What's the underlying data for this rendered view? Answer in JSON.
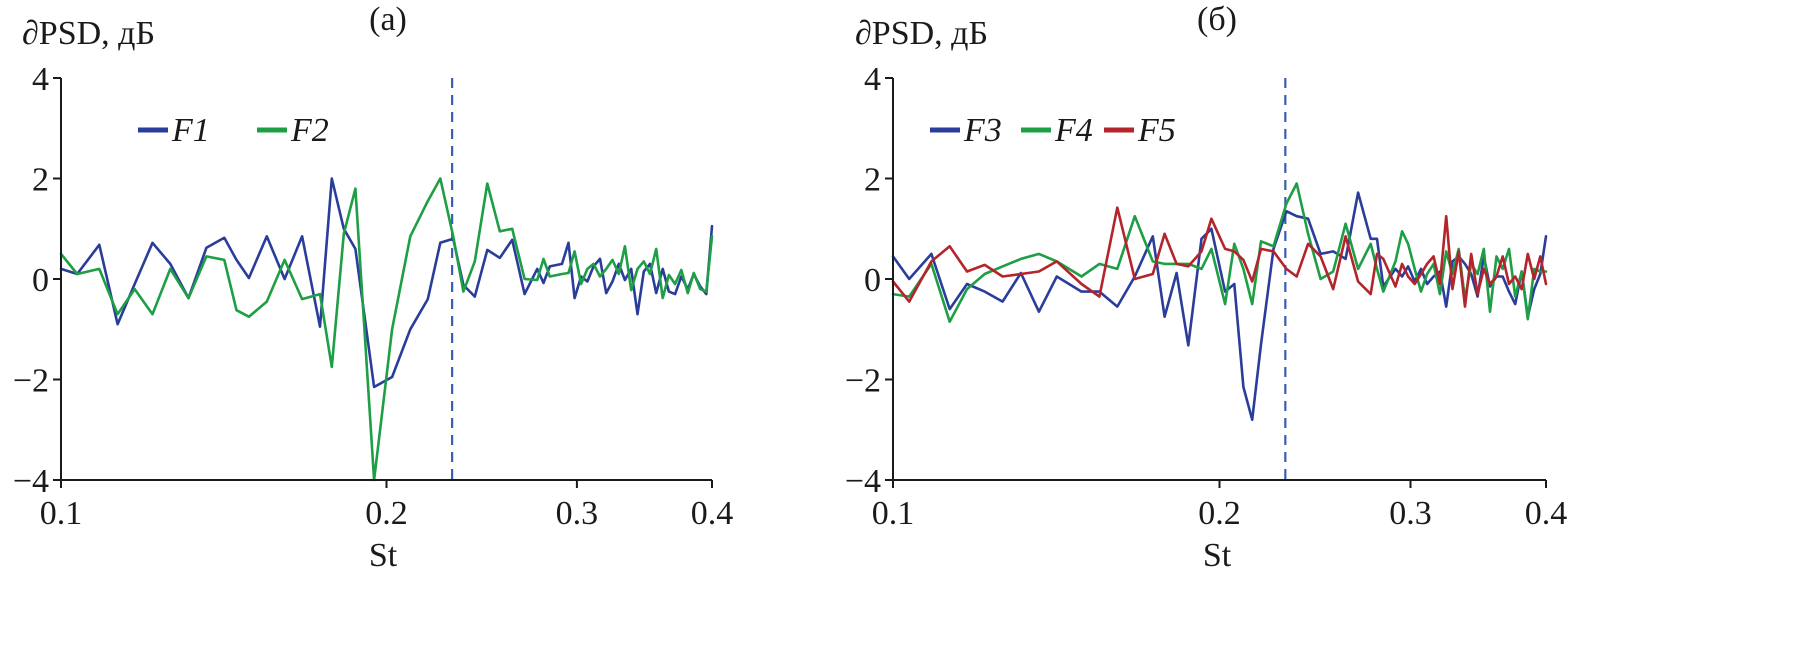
{
  "chart_data": [
    {
      "type": "line",
      "panel_label": "(a)",
      "ylabel": "∂PSD, дБ",
      "xlabel": "St",
      "x_scale": "log",
      "xlim": [
        0.1,
        0.4
      ],
      "ylim": [
        -4,
        4
      ],
      "x_ticks": [
        0.1,
        0.2,
        0.3,
        0.4
      ],
      "x_tick_labels": [
        "0.1",
        "0.2",
        "0.3",
        "0.4"
      ],
      "y_ticks": [
        -4,
        -2,
        0,
        2,
        4
      ],
      "y_tick_labels": [
        "−4",
        "−2",
        "0",
        "2",
        "4"
      ],
      "marker_x": 0.23,
      "legend_position": "top-left",
      "series": [
        {
          "name": "F1",
          "color": "#2a3d9a",
          "x": [
            0.1,
            0.1035,
            0.1085,
            0.1128,
            0.117,
            0.1215,
            0.1262,
            0.1312,
            0.1363,
            0.1416,
            0.1453,
            0.1492,
            0.155,
            0.161,
            0.1671,
            0.1736,
            0.178,
            0.1826,
            0.1872,
            0.1948,
            0.2024,
            0.2104,
            0.2184,
            0.2243,
            0.2305,
            0.2356,
            0.2414,
            0.2479,
            0.2546,
            0.2614,
            0.2684,
            0.2757,
            0.2794,
            0.2832,
            0.2906,
            0.2947,
            0.2985,
            0.3027,
            0.3068,
            0.3108,
            0.3151,
            0.3193,
            0.3236,
            0.328,
            0.3323,
            0.3368,
            0.3413,
            0.3459,
            0.3505,
            0.3552,
            0.3601,
            0.3649,
            0.3698,
            0.3747,
            0.3799,
            0.3848,
            0.3901,
            0.3952,
            0.4
          ],
          "values": [
            0.2,
            0.1,
            0.68,
            -0.9,
            -0.1,
            0.72,
            0.3,
            -0.38,
            0.62,
            0.82,
            0.38,
            0.02,
            0.85,
            0.0,
            0.85,
            -0.95,
            2.0,
            1.0,
            0.6,
            -2.15,
            -1.95,
            -1.0,
            -0.4,
            0.72,
            0.8,
            -0.12,
            -0.35,
            0.58,
            0.42,
            0.78,
            -0.3,
            0.2,
            -0.08,
            0.25,
            0.3,
            0.72,
            -0.38,
            0.05,
            -0.05,
            0.25,
            0.4,
            -0.28,
            -0.05,
            0.3,
            -0.02,
            0.2,
            -0.7,
            0.15,
            0.3,
            -0.28,
            0.2,
            -0.25,
            -0.3,
            0.05,
            -0.2,
            0.1,
            -0.15,
            -0.3,
            1.05
          ]
        },
        {
          "name": "F2",
          "color": "#1e9e45",
          "x": [
            0.1,
            0.1035,
            0.1085,
            0.1128,
            0.117,
            0.1215,
            0.1262,
            0.1312,
            0.1363,
            0.1416,
            0.1453,
            0.1492,
            0.155,
            0.161,
            0.1671,
            0.1736,
            0.178,
            0.1826,
            0.1872,
            0.1948,
            0.2024,
            0.2104,
            0.2184,
            0.2243,
            0.2305,
            0.2356,
            0.2414,
            0.2479,
            0.2546,
            0.2614,
            0.2684,
            0.2757,
            0.2794,
            0.2832,
            0.2906,
            0.2947,
            0.2985,
            0.3027,
            0.3068,
            0.3108,
            0.3151,
            0.3193,
            0.3236,
            0.328,
            0.3323,
            0.3368,
            0.3413,
            0.3459,
            0.3505,
            0.3552,
            0.3601,
            0.3649,
            0.3698,
            0.3747,
            0.3799,
            0.3848,
            0.3901,
            0.3952,
            0.4
          ],
          "values": [
            0.5,
            0.1,
            0.2,
            -0.7,
            -0.2,
            -0.7,
            0.2,
            -0.38,
            0.45,
            0.38,
            -0.62,
            -0.75,
            -0.45,
            0.38,
            -0.4,
            -0.3,
            -1.75,
            0.9,
            1.8,
            -4.0,
            -1.0,
            0.85,
            1.55,
            2.0,
            0.85,
            -0.25,
            0.35,
            1.9,
            0.95,
            1.0,
            0.0,
            -0.02,
            0.4,
            0.05,
            0.1,
            0.12,
            0.55,
            -0.1,
            0.2,
            0.3,
            0.05,
            0.2,
            0.38,
            0.1,
            0.65,
            -0.22,
            0.2,
            0.35,
            0.1,
            0.6,
            -0.38,
            0.08,
            -0.1,
            0.18,
            -0.28,
            0.12,
            -0.2,
            -0.25,
            0.85
          ]
        }
      ]
    },
    {
      "type": "line",
      "panel_label": "(б)",
      "ylabel": "∂PSD, дБ",
      "xlabel": "St",
      "x_scale": "log",
      "xlim": [
        0.1,
        0.4
      ],
      "ylim": [
        -4,
        4
      ],
      "x_ticks": [
        0.1,
        0.2,
        0.3,
        0.4
      ],
      "x_tick_labels": [
        "0.1",
        "0.2",
        "0.3",
        "0.4"
      ],
      "y_ticks": [
        -4,
        -2,
        0,
        2,
        4
      ],
      "y_tick_labels": [
        "−4",
        "−2",
        "0",
        "2",
        "4"
      ],
      "marker_x": 0.23,
      "legend_position": "top-left",
      "series": [
        {
          "name": "F3",
          "color": "#2a3d9a",
          "x": [
            0.1,
            0.1035,
            0.1085,
            0.1128,
            0.117,
            0.1215,
            0.1262,
            0.1312,
            0.1363,
            0.1416,
            0.1492,
            0.155,
            0.161,
            0.1671,
            0.1736,
            0.178,
            0.1826,
            0.1872,
            0.1925,
            0.1966,
            0.2024,
            0.2064,
            0.2104,
            0.2144,
            0.2184,
            0.2243,
            0.2305,
            0.2356,
            0.2414,
            0.2479,
            0.2546,
            0.2614,
            0.2684,
            0.2757,
            0.2794,
            0.2832,
            0.2906,
            0.2947,
            0.2985,
            0.3027,
            0.3068,
            0.3108,
            0.3151,
            0.3193,
            0.3236,
            0.328,
            0.3323,
            0.3368,
            0.3413,
            0.3459,
            0.3505,
            0.3552,
            0.3601,
            0.3649,
            0.3698,
            0.3747,
            0.3799,
            0.3848,
            0.3901,
            0.3952,
            0.4
          ],
          "values": [
            0.45,
            0.0,
            0.5,
            -0.6,
            -0.1,
            -0.25,
            -0.45,
            0.12,
            -0.65,
            0.05,
            -0.25,
            -0.25,
            -0.55,
            0.05,
            0.85,
            -0.75,
            0.12,
            -1.32,
            0.8,
            1.0,
            -0.25,
            -0.1,
            -2.15,
            -2.8,
            -1.3,
            0.6,
            1.35,
            1.25,
            1.2,
            0.5,
            0.55,
            0.4,
            1.72,
            0.8,
            0.8,
            -0.15,
            0.2,
            0.05,
            0.25,
            -0.05,
            0.2,
            -0.1,
            0.05,
            0.15,
            -0.55,
            0.35,
            0.45,
            0.3,
            0.1,
            -0.35,
            0.45,
            -0.15,
            0.05,
            0.05,
            -0.25,
            -0.5,
            0.15,
            -0.75,
            -0.2,
            0.1,
            0.85
          ]
        },
        {
          "name": "F4",
          "color": "#1e9e45",
          "x": [
            0.1,
            0.1035,
            0.1085,
            0.1128,
            0.117,
            0.1215,
            0.1262,
            0.1312,
            0.1363,
            0.1416,
            0.1492,
            0.155,
            0.161,
            0.1671,
            0.1736,
            0.178,
            0.1826,
            0.1872,
            0.1925,
            0.1966,
            0.2024,
            0.2064,
            0.2104,
            0.2144,
            0.2184,
            0.2243,
            0.2305,
            0.2356,
            0.2414,
            0.2479,
            0.2546,
            0.2614,
            0.2684,
            0.2757,
            0.2794,
            0.2832,
            0.2906,
            0.2947,
            0.2985,
            0.3027,
            0.3068,
            0.3108,
            0.3151,
            0.3193,
            0.3236,
            0.328,
            0.3323,
            0.3368,
            0.3413,
            0.3459,
            0.3505,
            0.3552,
            0.3601,
            0.3649,
            0.3698,
            0.3747,
            0.3799,
            0.3848,
            0.3901,
            0.3952,
            0.4
          ],
          "values": [
            -0.3,
            -0.35,
            0.3,
            -0.85,
            -0.2,
            0.1,
            0.25,
            0.4,
            0.5,
            0.35,
            0.05,
            0.3,
            0.2,
            1.25,
            0.35,
            0.3,
            0.3,
            0.3,
            0.2,
            0.6,
            -0.5,
            0.7,
            0.2,
            -0.5,
            0.75,
            0.65,
            1.5,
            1.9,
            0.9,
            0.0,
            0.15,
            1.1,
            0.2,
            0.7,
            0.2,
            -0.25,
            0.35,
            0.95,
            0.7,
            0.2,
            -0.25,
            0.1,
            0.3,
            -0.3,
            0.55,
            0.1,
            0.6,
            -0.4,
            0.3,
            0.1,
            0.6,
            -0.65,
            0.45,
            0.2,
            0.6,
            -0.35,
            0.15,
            -0.8,
            0.2,
            0.15,
            0.15
          ]
        },
        {
          "name": "F5",
          "color": "#b3242b",
          "x": [
            0.1,
            0.1035,
            0.1085,
            0.1128,
            0.117,
            0.1215,
            0.1262,
            0.1312,
            0.1363,
            0.1416,
            0.1492,
            0.155,
            0.161,
            0.1671,
            0.1736,
            0.178,
            0.1826,
            0.1872,
            0.1925,
            0.1966,
            0.2024,
            0.2064,
            0.2104,
            0.2144,
            0.2184,
            0.2243,
            0.2305,
            0.2356,
            0.2414,
            0.2479,
            0.2546,
            0.2614,
            0.2684,
            0.2757,
            0.2794,
            0.2832,
            0.2906,
            0.2947,
            0.2985,
            0.3027,
            0.3068,
            0.3108,
            0.3151,
            0.3193,
            0.3236,
            0.328,
            0.3323,
            0.3368,
            0.3413,
            0.3459,
            0.3505,
            0.3552,
            0.3601,
            0.3649,
            0.3698,
            0.3747,
            0.3799,
            0.3848,
            0.3901,
            0.3952,
            0.4
          ],
          "values": [
            -0.05,
            -0.45,
            0.35,
            0.65,
            0.15,
            0.28,
            0.05,
            0.1,
            0.15,
            0.35,
            -0.1,
            -0.35,
            1.42,
            0.0,
            0.1,
            0.9,
            0.3,
            0.25,
            0.55,
            1.2,
            0.6,
            0.55,
            0.38,
            -0.05,
            0.6,
            0.55,
            0.2,
            0.05,
            0.7,
            0.45,
            -0.2,
            0.85,
            -0.05,
            -0.3,
            0.5,
            0.4,
            -0.15,
            0.3,
            0.05,
            -0.1,
            0.1,
            0.3,
            0.45,
            -0.1,
            1.25,
            -0.2,
            0.55,
            -0.55,
            0.5,
            -0.3,
            0.2,
            -0.1,
            0.05,
            0.45,
            -0.1,
            0.05,
            -0.2,
            0.5,
            0.0,
            0.45,
            -0.1
          ]
        }
      ]
    }
  ]
}
